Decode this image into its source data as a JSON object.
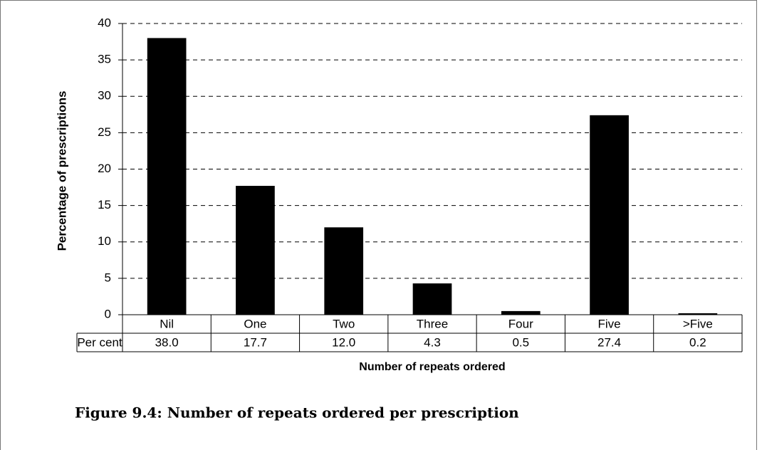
{
  "chart_data": {
    "type": "bar",
    "title": "Figure 9.4: Number of repeats ordered per prescription",
    "x_label": "Number of repeats ordered",
    "y_label": "Percentage of prescriptions",
    "categories": [
      "Nil",
      "One",
      "Two",
      "Three",
      "Four",
      "Five",
      ">Five"
    ],
    "values": [
      38,
      17.7,
      12,
      4.3,
      0.5,
      27.4,
      0.2
    ],
    "value_labels": [
      "38.0",
      "17.7",
      "12.0",
      "4.3",
      "0.5",
      "27.4",
      "0.2"
    ],
    "table_row_label": "Per cent",
    "color": "#000000",
    "ylim": [
      0,
      40
    ],
    "yticks": [
      0,
      5,
      10,
      15,
      20,
      25,
      30,
      35,
      40
    ],
    "grid": true
  }
}
